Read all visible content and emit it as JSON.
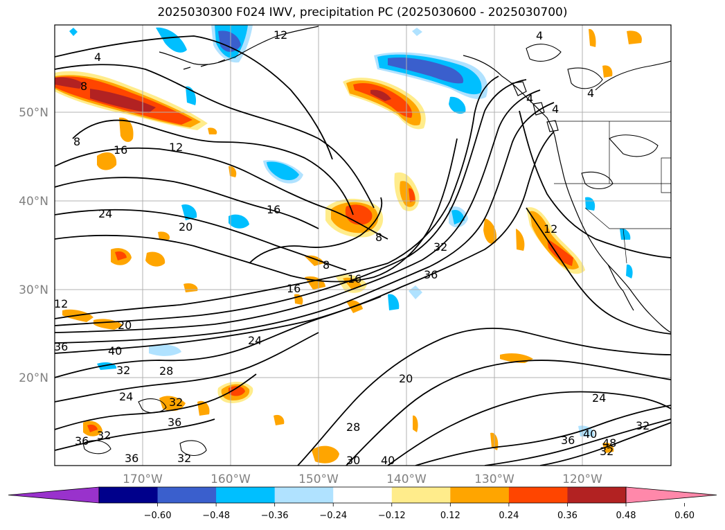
{
  "title": "2025030300 F024 IWV, precipitation PC (2025030600 - 2025030700)",
  "map": {
    "lat_labels": [
      "50°N",
      "40°N",
      "30°N",
      "20°N"
    ],
    "lon_labels": [
      "170°W",
      "160°W",
      "150°W",
      "140°W",
      "130°W",
      "120°W"
    ],
    "contour_labels": [
      "4",
      "4",
      "4",
      "4",
      "4",
      "8",
      "8",
      "8",
      "8",
      "12",
      "12",
      "12",
      "12",
      "16",
      "16",
      "16",
      "16",
      "20",
      "20",
      "20",
      "24",
      "24",
      "24",
      "24",
      "28",
      "28",
      "30",
      "32",
      "32",
      "32",
      "32",
      "32",
      "32",
      "36",
      "36",
      "36",
      "36",
      "36",
      "36",
      "40",
      "40",
      "40",
      "48",
      "32"
    ]
  },
  "colorbar": {
    "ticks": [
      "−0.60",
      "−0.48",
      "−0.36",
      "−0.24",
      "−0.12",
      "0.12",
      "0.24",
      "0.36",
      "0.48",
      "0.60"
    ],
    "colors": [
      "#9932cc",
      "#00008b",
      "#3a5fcd",
      "#00bfff",
      "#b0e2ff",
      "#ffffff",
      "#ffec8b",
      "#ffa500",
      "#ff4500",
      "#b22222",
      "#ff88aa"
    ]
  },
  "colors": {
    "orange": "#ffa500",
    "light_yellow": "#ffec8b",
    "red_orange": "#ff4500",
    "dark_red": "#b22222",
    "sky_blue": "#00bfff",
    "light_blue": "#b0e2ff",
    "royal_blue": "#3a5fcd",
    "navy": "#00008b"
  }
}
